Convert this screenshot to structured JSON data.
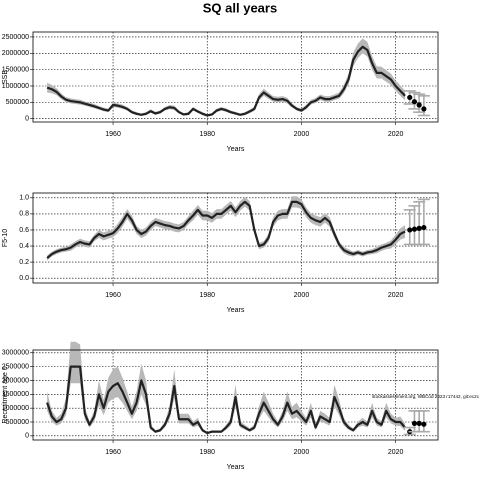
{
  "title": "SQ all years",
  "watermark": "stockassessment.org, WBCod 2023 r17442, git:ec2c",
  "chart_data": [
    {
      "type": "line",
      "ylabel": "SSB",
      "xlabel": "Years",
      "x": [
        1946,
        1947,
        1948,
        1949,
        1950,
        1951,
        1952,
        1953,
        1954,
        1955,
        1956,
        1957,
        1958,
        1959,
        1960,
        1961,
        1962,
        1963,
        1964,
        1965,
        1966,
        1967,
        1968,
        1969,
        1970,
        1971,
        1972,
        1973,
        1974,
        1975,
        1976,
        1977,
        1978,
        1979,
        1980,
        1981,
        1982,
        1983,
        1984,
        1985,
        1986,
        1987,
        1988,
        1989,
        1990,
        1991,
        1992,
        1993,
        1994,
        1995,
        1996,
        1997,
        1998,
        1999,
        2000,
        2001,
        2002,
        2003,
        2004,
        2005,
        2006,
        2007,
        2008,
        2009,
        2010,
        2011,
        2012,
        2013,
        2014,
        2015,
        2016,
        2017,
        2018,
        2019,
        2020,
        2021,
        2022
      ],
      "values": [
        950000,
        900000,
        820000,
        680000,
        580000,
        540000,
        520000,
        500000,
        460000,
        420000,
        380000,
        330000,
        280000,
        250000,
        420000,
        400000,
        360000,
        300000,
        200000,
        150000,
        120000,
        150000,
        230000,
        160000,
        200000,
        300000,
        350000,
        330000,
        200000,
        130000,
        150000,
        300000,
        220000,
        150000,
        100000,
        130000,
        250000,
        300000,
        260000,
        200000,
        160000,
        120000,
        150000,
        220000,
        300000,
        650000,
        800000,
        700000,
        600000,
        580000,
        600000,
        550000,
        400000,
        300000,
        250000,
        350000,
        500000,
        550000,
        650000,
        600000,
        600000,
        650000,
        700000,
        900000,
        1200000,
        1800000,
        2050000,
        2200000,
        2100000,
        1700000,
        1400000,
        1400000,
        1300000,
        1200000,
        1000000,
        850000,
        700000
      ],
      "lower": [
        800000,
        780000,
        720000,
        600000,
        510000,
        470000,
        450000,
        430000,
        400000,
        360000,
        320000,
        280000,
        230000,
        200000,
        360000,
        340000,
        300000,
        250000,
        160000,
        110000,
        90000,
        110000,
        180000,
        120000,
        160000,
        250000,
        290000,
        270000,
        160000,
        100000,
        110000,
        250000,
        180000,
        110000,
        70000,
        100000,
        200000,
        250000,
        210000,
        160000,
        120000,
        90000,
        110000,
        170000,
        240000,
        560000,
        700000,
        610000,
        520000,
        500000,
        520000,
        470000,
        340000,
        250000,
        200000,
        290000,
        430000,
        480000,
        570000,
        520000,
        520000,
        570000,
        610000,
        780000,
        1050000,
        1600000,
        1850000,
        2000000,
        1900000,
        1500000,
        1230000,
        1230000,
        1130000,
        1030000,
        850000,
        700000,
        560000
      ],
      "upper": [
        1100000,
        1030000,
        930000,
        770000,
        660000,
        620000,
        600000,
        580000,
        530000,
        490000,
        450000,
        390000,
        340000,
        310000,
        490000,
        470000,
        430000,
        360000,
        250000,
        200000,
        160000,
        200000,
        290000,
        210000,
        250000,
        360000,
        420000,
        400000,
        250000,
        170000,
        200000,
        360000,
        270000,
        200000,
        140000,
        170000,
        310000,
        360000,
        320000,
        250000,
        210000,
        160000,
        200000,
        280000,
        370000,
        750000,
        920000,
        800000,
        690000,
        670000,
        690000,
        640000,
        470000,
        360000,
        310000,
        420000,
        580000,
        630000,
        740000,
        690000,
        690000,
        740000,
        800000,
        1030000,
        1370000,
        2020000,
        2300000,
        2450000,
        2350000,
        1920000,
        1600000,
        1590000,
        1480000,
        1380000,
        1170000,
        1020000,
        860000
      ],
      "forecast": {
        "x": [
          2023,
          2024,
          2025,
          2026
        ],
        "values": [
          650000,
          520000,
          420000,
          300000
        ],
        "lower": [
          450000,
          300000,
          200000,
          100000
        ],
        "upper": [
          850000,
          800000,
          750000,
          700000
        ]
      },
      "xlim": [
        1943,
        2029
      ],
      "xticks": [
        1960,
        1980,
        2000,
        2020
      ],
      "ylim": [
        -100000,
        2650000
      ],
      "yticks": [
        0,
        500000,
        1000000,
        1500000,
        2000000,
        2500000
      ],
      "grid": true
    },
    {
      "type": "line",
      "ylabel": "F5-10",
      "xlabel": "Years",
      "x": [
        1946,
        1947,
        1948,
        1949,
        1950,
        1951,
        1952,
        1953,
        1954,
        1955,
        1956,
        1957,
        1958,
        1959,
        1960,
        1961,
        1962,
        1963,
        1964,
        1965,
        1966,
        1967,
        1968,
        1969,
        1970,
        1971,
        1972,
        1973,
        1974,
        1975,
        1976,
        1977,
        1978,
        1979,
        1980,
        1981,
        1982,
        1983,
        1984,
        1985,
        1986,
        1987,
        1988,
        1989,
        1990,
        1991,
        1992,
        1993,
        1994,
        1995,
        1996,
        1997,
        1998,
        1999,
        2000,
        2001,
        2002,
        2003,
        2004,
        2005,
        2006,
        2007,
        2008,
        2009,
        2010,
        2011,
        2012,
        2013,
        2014,
        2015,
        2016,
        2017,
        2018,
        2019,
        2020,
        2021,
        2022
      ],
      "values": [
        0.25,
        0.3,
        0.33,
        0.35,
        0.36,
        0.38,
        0.42,
        0.45,
        0.43,
        0.42,
        0.5,
        0.55,
        0.52,
        0.54,
        0.56,
        0.62,
        0.7,
        0.8,
        0.72,
        0.6,
        0.55,
        0.58,
        0.65,
        0.7,
        0.68,
        0.66,
        0.65,
        0.63,
        0.62,
        0.65,
        0.72,
        0.78,
        0.85,
        0.78,
        0.78,
        0.75,
        0.8,
        0.8,
        0.85,
        0.9,
        0.82,
        0.9,
        0.95,
        0.9,
        0.6,
        0.4,
        0.42,
        0.5,
        0.7,
        0.78,
        0.8,
        0.8,
        0.95,
        0.95,
        0.92,
        0.82,
        0.75,
        0.72,
        0.7,
        0.75,
        0.7,
        0.55,
        0.42,
        0.35,
        0.32,
        0.3,
        0.32,
        0.3,
        0.32,
        0.33,
        0.35,
        0.38,
        0.4,
        0.42,
        0.48,
        0.55,
        0.58
      ],
      "lower": [
        0.22,
        0.27,
        0.3,
        0.32,
        0.33,
        0.34,
        0.38,
        0.41,
        0.39,
        0.38,
        0.46,
        0.5,
        0.47,
        0.49,
        0.51,
        0.56,
        0.64,
        0.74,
        0.66,
        0.55,
        0.5,
        0.53,
        0.6,
        0.65,
        0.63,
        0.61,
        0.6,
        0.58,
        0.57,
        0.6,
        0.67,
        0.72,
        0.79,
        0.72,
        0.72,
        0.69,
        0.74,
        0.74,
        0.79,
        0.84,
        0.76,
        0.84,
        0.89,
        0.84,
        0.55,
        0.36,
        0.38,
        0.45,
        0.64,
        0.72,
        0.74,
        0.74,
        0.88,
        0.88,
        0.86,
        0.76,
        0.69,
        0.66,
        0.64,
        0.69,
        0.64,
        0.5,
        0.38,
        0.31,
        0.28,
        0.27,
        0.29,
        0.27,
        0.29,
        0.3,
        0.31,
        0.34,
        0.36,
        0.37,
        0.42,
        0.48,
        0.5
      ],
      "upper": [
        0.28,
        0.33,
        0.36,
        0.38,
        0.39,
        0.42,
        0.46,
        0.49,
        0.47,
        0.46,
        0.54,
        0.6,
        0.57,
        0.59,
        0.61,
        0.68,
        0.76,
        0.86,
        0.78,
        0.65,
        0.6,
        0.63,
        0.7,
        0.75,
        0.73,
        0.71,
        0.7,
        0.68,
        0.67,
        0.7,
        0.77,
        0.84,
        0.91,
        0.84,
        0.84,
        0.81,
        0.86,
        0.86,
        0.91,
        0.96,
        0.88,
        0.96,
        1.01,
        0.96,
        0.65,
        0.44,
        0.46,
        0.55,
        0.76,
        0.84,
        0.86,
        0.86,
        1.02,
        1.02,
        0.98,
        0.88,
        0.81,
        0.78,
        0.76,
        0.81,
        0.76,
        0.6,
        0.46,
        0.39,
        0.36,
        0.33,
        0.35,
        0.33,
        0.35,
        0.36,
        0.39,
        0.42,
        0.44,
        0.47,
        0.54,
        0.62,
        0.66
      ],
      "forecast": {
        "x": [
          2023,
          2024,
          2025,
          2026
        ],
        "values": [
          0.6,
          0.61,
          0.62,
          0.63
        ],
        "lower": [
          0.42,
          0.42,
          0.42,
          0.42
        ],
        "upper": [
          0.85,
          0.9,
          0.95,
          0.98
        ]
      },
      "xlim": [
        1943,
        2029
      ],
      "xticks": [
        1960,
        1980,
        2000,
        2020
      ],
      "ylim": [
        -0.06,
        1.06
      ],
      "yticks": [
        {
          "value": 0,
          "label": "0.0"
        },
        0.2,
        0.4,
        0.6,
        0.8,
        {
          "value": 1,
          "label": "1.0"
        }
      ],
      "grid": true
    },
    {
      "type": "line",
      "ylabel": "Recruitment age 0",
      "xlabel": "Years",
      "x": [
        1946,
        1947,
        1948,
        1949,
        1950,
        1951,
        1952,
        1953,
        1954,
        1955,
        1956,
        1957,
        1958,
        1959,
        1960,
        1961,
        1962,
        1963,
        1964,
        1965,
        1966,
        1967,
        1968,
        1969,
        1970,
        1971,
        1972,
        1973,
        1974,
        1975,
        1976,
        1977,
        1978,
        1979,
        1980,
        1981,
        1982,
        1983,
        1984,
        1985,
        1986,
        1987,
        1988,
        1989,
        1990,
        1991,
        1992,
        1993,
        1994,
        1995,
        1996,
        1997,
        1998,
        1999,
        2000,
        2001,
        2002,
        2003,
        2004,
        2005,
        2006,
        2007,
        2008,
        2009,
        2010,
        2011,
        2012,
        2013,
        2014,
        2015,
        2016,
        2017,
        2018,
        2019,
        2020,
        2021,
        2022
      ],
      "values": [
        1200000,
        700000,
        500000,
        600000,
        1000000,
        2500000,
        2500000,
        2500000,
        800000,
        400000,
        700000,
        1500000,
        1000000,
        1600000,
        1800000,
        1900000,
        1600000,
        1200000,
        800000,
        1200000,
        2000000,
        1500000,
        300000,
        150000,
        200000,
        400000,
        800000,
        1800000,
        600000,
        600000,
        600000,
        400000,
        500000,
        200000,
        100000,
        150000,
        150000,
        150000,
        300000,
        500000,
        1400000,
        400000,
        300000,
        200000,
        300000,
        800000,
        1200000,
        900000,
        600000,
        400000,
        700000,
        1200000,
        800000,
        900000,
        700000,
        500000,
        900000,
        300000,
        700000,
        600000,
        500000,
        1400000,
        1000000,
        500000,
        300000,
        200000,
        400000,
        500000,
        400000,
        900000,
        500000,
        400000,
        900000,
        600000,
        500000,
        500000,
        300000
      ],
      "lower": [
        900000,
        520000,
        370000,
        450000,
        750000,
        1900000,
        1900000,
        1900000,
        600000,
        300000,
        520000,
        1100000,
        750000,
        1200000,
        1350000,
        1400000,
        1200000,
        900000,
        600000,
        900000,
        1500000,
        1100000,
        220000,
        110000,
        150000,
        300000,
        600000,
        1350000,
        450000,
        450000,
        450000,
        300000,
        370000,
        150000,
        70000,
        110000,
        110000,
        110000,
        220000,
        370000,
        1050000,
        300000,
        220000,
        150000,
        220000,
        600000,
        900000,
        670000,
        450000,
        300000,
        520000,
        900000,
        600000,
        670000,
        520000,
        370000,
        670000,
        220000,
        520000,
        450000,
        370000,
        1050000,
        750000,
        370000,
        220000,
        150000,
        300000,
        370000,
        300000,
        670000,
        370000,
        300000,
        670000,
        450000,
        370000,
        350000,
        180000
      ],
      "upper": [
        1600000,
        900000,
        650000,
        800000,
        1350000,
        3400000,
        3400000,
        3300000,
        1050000,
        520000,
        900000,
        2000000,
        1300000,
        2100000,
        2400000,
        2500000,
        2100000,
        1600000,
        1050000,
        1600000,
        2600000,
        2000000,
        400000,
        200000,
        270000,
        520000,
        1050000,
        2400000,
        800000,
        800000,
        800000,
        520000,
        650000,
        270000,
        140000,
        200000,
        200000,
        200000,
        400000,
        650000,
        1850000,
        520000,
        400000,
        270000,
        400000,
        1050000,
        1600000,
        1200000,
        800000,
        520000,
        900000,
        1600000,
        1050000,
        1200000,
        900000,
        650000,
        1200000,
        400000,
        900000,
        800000,
        650000,
        1850000,
        1300000,
        650000,
        400000,
        270000,
        520000,
        650000,
        520000,
        1200000,
        650000,
        520000,
        1200000,
        800000,
        650000,
        700000,
        450000
      ],
      "forecast": {
        "x": [
          2023,
          2024,
          2025,
          2026
        ],
        "values": [
          150000,
          450000,
          450000,
          420000
        ],
        "lower": [
          50000,
          150000,
          150000,
          150000
        ],
        "upper": [
          300000,
          900000,
          900000,
          900000
        ]
      },
      "xlim": [
        1943,
        2029
      ],
      "xticks": [
        1960,
        1980,
        2000,
        2020
      ],
      "ylim": [
        -150000,
        3100000
      ],
      "yticks": [
        0,
        500000,
        1000000,
        1500000,
        2000000,
        2500000,
        3000000
      ],
      "grid": true
    }
  ]
}
